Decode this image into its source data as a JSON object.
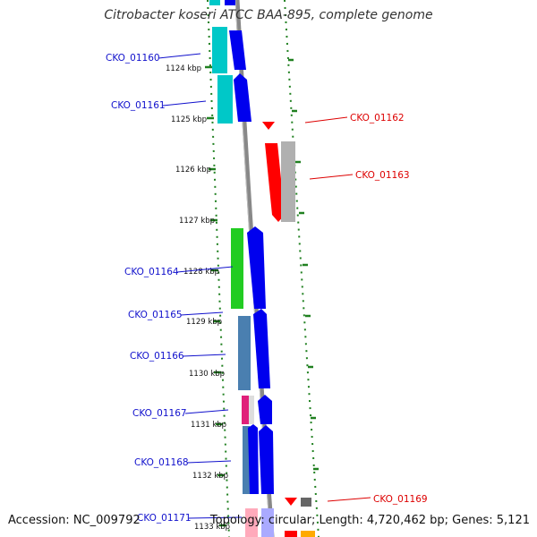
{
  "title": "Citrobacter koseri ATCC BAA-895, complete genome",
  "footer": {
    "accession": "Accession: NC_009792",
    "summary": "Topology: circular; Length: 4,720,462 bp; Genes: 5,121"
  },
  "ticks": [
    "1124 kbp",
    "1125 kbp",
    "1126 kbp",
    "1127 kbp",
    "1128 kbp",
    "1129 kbp",
    "1130 kbp",
    "1131 kbp",
    "1132 kbp",
    "1133 kbp"
  ],
  "genes_left": [
    "CKO_01160",
    "CKO_01161",
    "CKO_01164",
    "CKO_01165",
    "CKO_01166",
    "CKO_01167",
    "CKO_01168",
    "CKO_01171"
  ],
  "genes_right": [
    "CKO_01162",
    "CKO_01163",
    "CKO_01169"
  ],
  "colors": {
    "left_label": "#1010cc",
    "right_label": "#dd0000",
    "ruler": "#208020",
    "backbone": "#808080"
  }
}
